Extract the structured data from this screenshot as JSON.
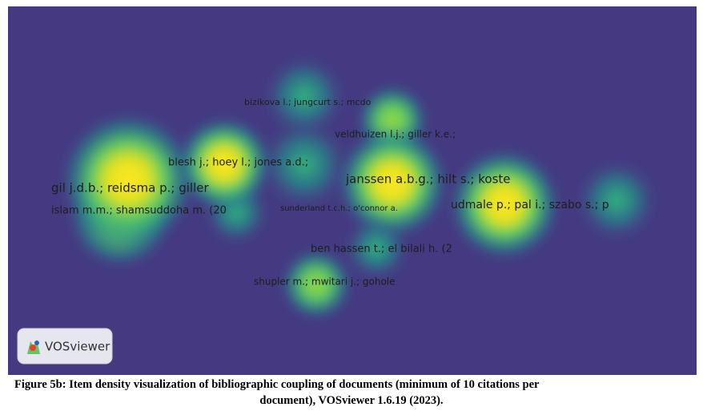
{
  "map": {
    "labels": [
      "bizikova l.; jungcurt s.; mcdo",
      "veldhuizen l.j.; giller k.e.;",
      "blesh j.; hoey l.; jones a.d.;",
      "janssen a.b.g.; hilt s.; koste",
      "gil j.d.b.; reidsma p.; giller",
      "islam m.m.; shamsuddoha m. (20",
      "sunderland t.c.h.; o'connor a.",
      "udmale p.; pal i.; szabo s.; p",
      "ben hassen t.; el bilali h. (2",
      "shupler m.; mwitari j.; gohole"
    ],
    "logo": "VOSviewer"
  },
  "caption": {
    "lines": [
      "Figure 5b: Item density visualization of bibliographic coupling of documents (minimum of 10 citations per",
      "document), VOSviewer 1.6.19 (2023)."
    ]
  }
}
